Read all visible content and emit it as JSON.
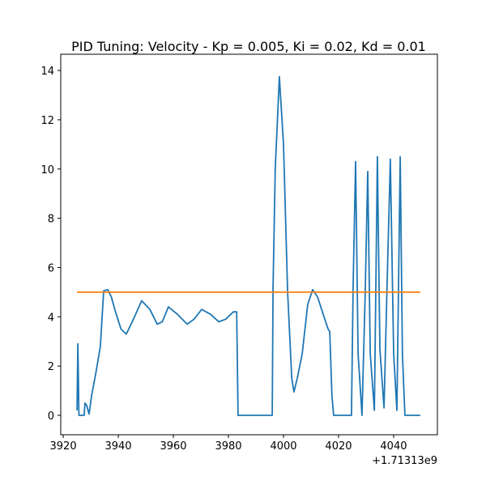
{
  "chart_data": {
    "type": "line",
    "title": "PID Tuning: Velocity - Kp = 0.005, Ki = 0.02, Kd = 0.01",
    "x_offset_label": "+1.71313e9",
    "xlim": [
      3919.1,
      4055.9
    ],
    "ylim": [
      -0.79,
      14.66
    ],
    "xticks": [
      3920,
      3940,
      3960,
      3980,
      4000,
      4020,
      4040
    ],
    "yticks": [
      0,
      2,
      4,
      6,
      8,
      10,
      12,
      14
    ],
    "series": [
      {
        "color": "#1f77b4",
        "x": [
          3925,
          3925.3,
          3925.5,
          3925.7,
          3927.6,
          3927.9,
          3928.5,
          3929.4,
          3930.3,
          3932,
          3933.5,
          3934.7,
          3936.2,
          3937.5,
          3939,
          3941,
          3942.9,
          3945.5,
          3948.5,
          3951.5,
          3954.1,
          3956,
          3958.2,
          3961.5,
          3965,
          3967.5,
          3970.3,
          3973.5,
          3976.5,
          3979,
          3981.8,
          3983,
          3983.5,
          3995.9,
          3996.2,
          3997,
          3998.5,
          4000,
          4001.5,
          4003,
          4003.8,
          4005,
          4006.8,
          4008.8,
          4010.6,
          4012.4,
          4014.7,
          4016.2,
          4016.8,
          4017.6,
          4018.2,
          4024.7,
          4025.3,
          4026.2,
          4027.1,
          4028.5,
          4029.7,
          4030.6,
          4031.5,
          4033,
          4034.1,
          4035,
          4036.5,
          4037.6,
          4038.8,
          4040,
          4041.2,
          4042.4,
          4043.2,
          4044.1,
          4049.7
        ],
        "values": [
          0.2,
          2.9,
          1.5,
          0,
          0,
          0.5,
          0.4,
          0.05,
          0.8,
          1.8,
          2.8,
          5.05,
          5.1,
          4.8,
          4.2,
          3.5,
          3.3,
          3.9,
          4.65,
          4.3,
          3.7,
          3.8,
          4.4,
          4.1,
          3.7,
          3.9,
          4.3,
          4.1,
          3.8,
          3.9,
          4.2,
          4.2,
          0,
          0,
          5.2,
          10,
          13.75,
          11,
          5,
          1.5,
          0.95,
          1.5,
          2.5,
          4.5,
          5.1,
          4.8,
          4,
          3.5,
          3.4,
          0.8,
          0,
          0,
          5.3,
          10.3,
          2.5,
          0,
          5,
          9.9,
          2.5,
          0.2,
          10.5,
          2.7,
          0.3,
          5.2,
          10.4,
          2.5,
          0.2,
          10.5,
          2.5,
          0,
          0
        ]
      },
      {
        "color": "#ff7f0e",
        "x": [
          3925,
          4049.7
        ],
        "values": [
          5,
          5
        ]
      }
    ]
  }
}
